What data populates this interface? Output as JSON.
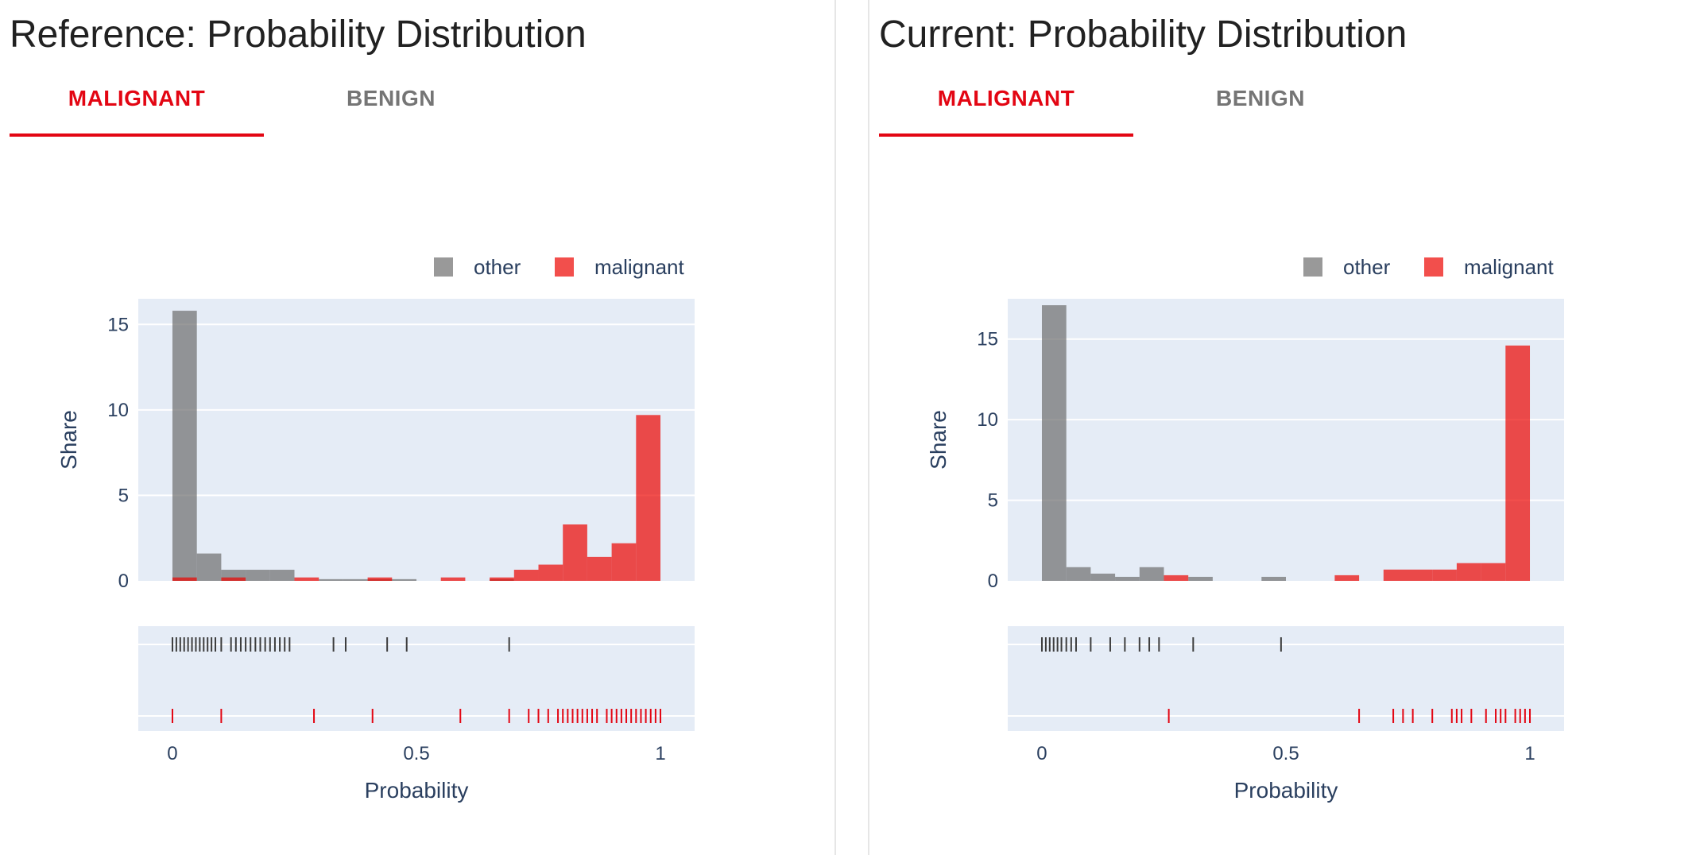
{
  "panels": [
    {
      "title": "Reference: Probability Distribution",
      "tabs": [
        {
          "label": "MALIGNANT",
          "active": true
        },
        {
          "label": "BENIGN",
          "active": false
        }
      ],
      "chart_data": {
        "type": "bar",
        "legend_position": "top-right",
        "xlabel": "Probability",
        "ylabel": "Share",
        "xlim": [
          -0.07,
          1.07
        ],
        "ylim": [
          0,
          16.5
        ],
        "yticks": [
          0,
          5,
          10,
          15
        ],
        "xticks": [
          {
            "value": 0,
            "label": "0"
          },
          {
            "value": 0.5,
            "label": "0.5"
          },
          {
            "value": 1,
            "label": "1"
          }
        ],
        "bin_width": 0.05,
        "series": [
          {
            "name": "other",
            "color": "#6e6e6e",
            "bins": [
              [
                0,
                15.8
              ],
              [
                0.05,
                1.6
              ],
              [
                0.1,
                0.65
              ],
              [
                0.15,
                0.65
              ],
              [
                0.2,
                0.65
              ],
              [
                0.3,
                0.1
              ],
              [
                0.35,
                0.1
              ],
              [
                0.4,
                0.1
              ],
              [
                0.45,
                0.1
              ],
              [
                0.65,
                0.1
              ]
            ],
            "rug": [
              0,
              0.008,
              0.016,
              0.024,
              0.032,
              0.04,
              0.048,
              0.056,
              0.064,
              0.072,
              0.08,
              0.088,
              0.1,
              0.12,
              0.13,
              0.14,
              0.15,
              0.16,
              0.17,
              0.18,
              0.19,
              0.2,
              0.21,
              0.22,
              0.23,
              0.24,
              0.33,
              0.355,
              0.44,
              0.48,
              0.69
            ]
          },
          {
            "name": "malignant",
            "color": "#ed0400",
            "bins": [
              [
                0,
                0.2
              ],
              [
                0.1,
                0.2
              ],
              [
                0.25,
                0.2
              ],
              [
                0.4,
                0.2
              ],
              [
                0.55,
                0.2
              ],
              [
                0.65,
                0.2
              ],
              [
                0.7,
                0.65
              ],
              [
                0.75,
                0.95
              ],
              [
                0.8,
                3.3
              ],
              [
                0.85,
                1.4
              ],
              [
                0.9,
                2.2
              ],
              [
                0.95,
                9.7
              ]
            ],
            "rug": [
              0,
              0.1,
              0.29,
              0.41,
              0.59,
              0.69,
              0.73,
              0.75,
              0.77,
              0.79,
              0.8,
              0.81,
              0.82,
              0.83,
              0.84,
              0.85,
              0.86,
              0.87,
              0.89,
              0.9,
              0.91,
              0.92,
              0.93,
              0.94,
              0.95,
              0.96,
              0.97,
              0.98,
              0.99,
              1.0
            ]
          }
        ]
      }
    },
    {
      "title": "Current: Probability Distribution",
      "tabs": [
        {
          "label": "MALIGNANT",
          "active": true
        },
        {
          "label": "BENIGN",
          "active": false
        }
      ],
      "chart_data": {
        "type": "bar",
        "legend_position": "top-right",
        "xlabel": "Probability",
        "ylabel": "Share",
        "xlim": [
          -0.07,
          1.07
        ],
        "ylim": [
          0,
          17.5
        ],
        "yticks": [
          0,
          5,
          10,
          15
        ],
        "xticks": [
          {
            "value": 0,
            "label": "0"
          },
          {
            "value": 0.5,
            "label": "0.5"
          },
          {
            "value": 1,
            "label": "1"
          }
        ],
        "bin_width": 0.05,
        "series": [
          {
            "name": "other",
            "color": "#6e6e6e",
            "bins": [
              [
                0,
                17.1
              ],
              [
                0.05,
                0.85
              ],
              [
                0.1,
                0.45
              ],
              [
                0.15,
                0.25
              ],
              [
                0.2,
                0.85
              ],
              [
                0.3,
                0.25
              ],
              [
                0.45,
                0.25
              ]
            ],
            "rug": [
              0,
              0.008,
              0.016,
              0.024,
              0.032,
              0.04,
              0.05,
              0.06,
              0.07,
              0.1,
              0.14,
              0.17,
              0.2,
              0.22,
              0.24,
              0.31,
              0.49
            ]
          },
          {
            "name": "malignant",
            "color": "#ed0400",
            "bins": [
              [
                0.25,
                0.35
              ],
              [
                0.6,
                0.35
              ],
              [
                0.7,
                0.7
              ],
              [
                0.75,
                0.7
              ],
              [
                0.8,
                0.7
              ],
              [
                0.85,
                1.1
              ],
              [
                0.9,
                1.1
              ],
              [
                0.95,
                14.6
              ]
            ],
            "rug": [
              0.26,
              0.65,
              0.72,
              0.74,
              0.76,
              0.8,
              0.84,
              0.85,
              0.86,
              0.88,
              0.91,
              0.93,
              0.94,
              0.95,
              0.97,
              0.98,
              0.99,
              1.0
            ]
          }
        ]
      }
    }
  ]
}
